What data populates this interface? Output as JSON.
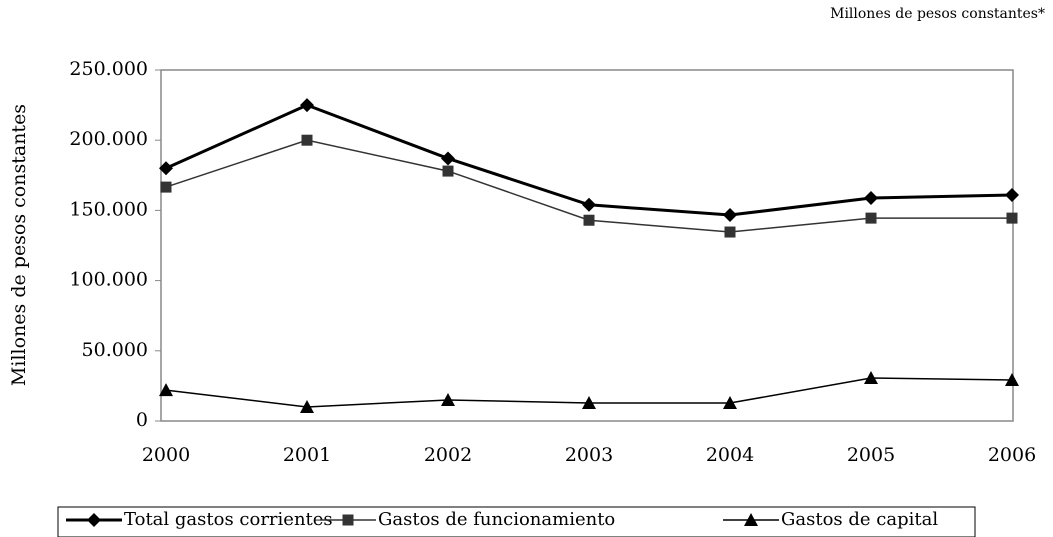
{
  "chart_data": {
    "type": "line",
    "subtitle": "Millones de pesos constantes*",
    "y_label": "Millones de pesos constantes",
    "categories": [
      "2000",
      "2001",
      "2002",
      "2003",
      "2004",
      "2005",
      "2006"
    ],
    "series": [
      {
        "name": "Total gastos corrientes",
        "color": "#000000",
        "marker": "diamond",
        "line_width": 3,
        "values": [
          180000,
          225000,
          187000,
          154000,
          146700,
          158800,
          161000
        ]
      },
      {
        "name": "Gastos de funcionamiento",
        "color": "#333333",
        "marker": "square",
        "line_width": 1.5,
        "values": [
          166600,
          200000,
          178000,
          143000,
          134600,
          144500,
          144500
        ]
      },
      {
        "name": "Gastos de capital",
        "color": "#000000",
        "marker": "triangle",
        "line_width": 1.5,
        "values": [
          22000,
          10000,
          15000,
          12800,
          12800,
          30600,
          29200
        ]
      }
    ],
    "ylim": [
      0,
      250000
    ],
    "yticks": [
      0,
      {
        "value": 50000,
        "label": "50.000"
      },
      {
        "value": 100000,
        "label": "100.000"
      },
      {
        "value": 150000,
        "label": "150.000"
      },
      {
        "value": 200000,
        "label": "200.000"
      },
      {
        "value": 250000,
        "label": "250.000"
      }
    ],
    "legend": "bottom"
  }
}
